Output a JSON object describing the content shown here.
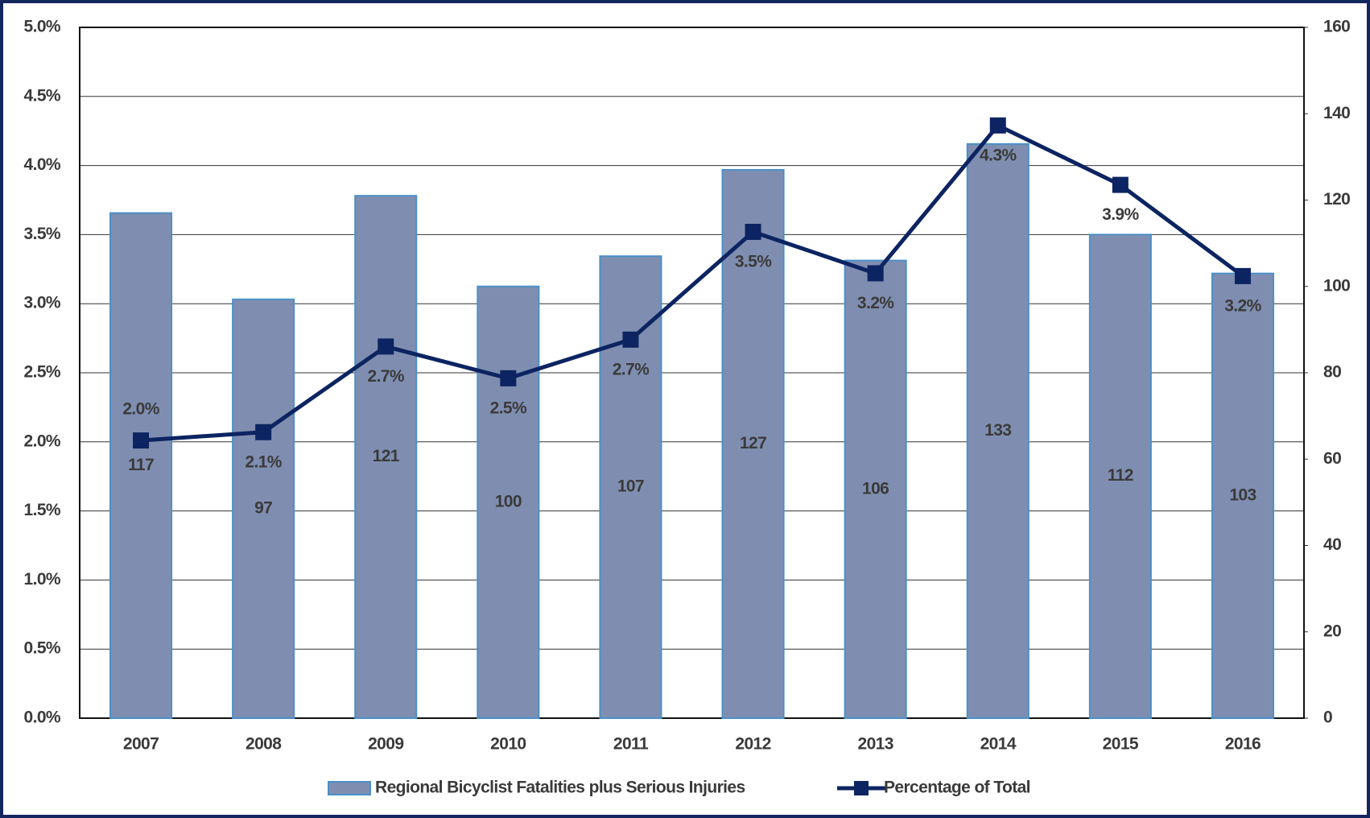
{
  "chart_data": {
    "type": "combo",
    "categories": [
      "2007",
      "2008",
      "2009",
      "2010",
      "2011",
      "2012",
      "2013",
      "2014",
      "2015",
      "2016"
    ],
    "series": [
      {
        "name": "Regional Bicyclist Fatalities plus Serious Injuries",
        "type": "bar",
        "axis": "y2",
        "color": "#7f8eb0",
        "edge": "#4a90c8",
        "values": [
          117,
          97,
          121,
          100,
          107,
          127,
          106,
          133,
          112,
          103
        ]
      },
      {
        "name": "Percentage of Total",
        "type": "line",
        "axis": "y",
        "color": "#0c2461",
        "values": [
          2.01,
          2.07,
          2.69,
          2.46,
          2.74,
          3.52,
          3.22,
          4.29,
          3.86,
          3.2
        ],
        "value_labels": [
          "2.0%",
          "2.1%",
          "2.7%",
          "2.5%",
          "2.7%",
          "3.5%",
          "3.2%",
          "4.3%",
          "3.9%",
          "3.2%"
        ]
      }
    ],
    "ylim": [
      0,
      5
    ],
    "yticks": [
      {
        "value": 0,
        "label": "0.0%"
      },
      {
        "value": 0.5,
        "label": "0.5%"
      },
      {
        "value": 1,
        "label": "1.0%"
      },
      {
        "value": 1.5,
        "label": "1.5%"
      },
      {
        "value": 2,
        "label": "2.0%"
      },
      {
        "value": 2.5,
        "label": "2.5%"
      },
      {
        "value": 3,
        "label": "3.0%"
      },
      {
        "value": 3.5,
        "label": "3.5%"
      },
      {
        "value": 4,
        "label": "4.0%"
      },
      {
        "value": 4.5,
        "label": "4.5%"
      },
      {
        "value": 5,
        "label": "5.0%"
      }
    ],
    "y2lim": [
      0,
      160
    ],
    "y2ticks": [
      0,
      20,
      40,
      60,
      80,
      100,
      120,
      140,
      160
    ],
    "grid": true,
    "legend": "bottom"
  }
}
